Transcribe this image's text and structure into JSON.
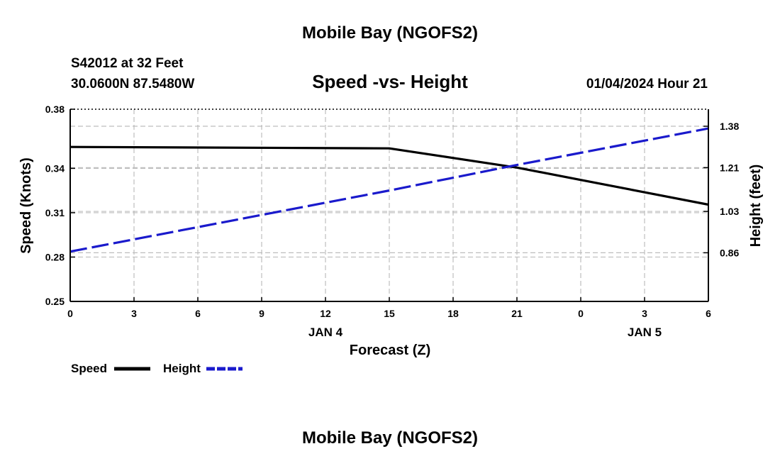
{
  "header": {
    "title": "Mobile Bay (NGOFS2)",
    "station": "S42012 at 32 Feet",
    "coords": "30.0600N  87.5480W",
    "date": "01/04/2024 Hour 21",
    "footer_title": "Mobile Bay (NGOFS2)"
  },
  "chart_data": {
    "type": "line",
    "title": "Speed -vs- Height",
    "xlabel": "Forecast (Z)",
    "ylabel": "Speed (Knots)",
    "y2label": "Height (feet)",
    "x": [
      0,
      1,
      2,
      3,
      4,
      5,
      6,
      7,
      8,
      9,
      10,
      11
    ],
    "x_tick_labels": [
      "0",
      "3",
      "6",
      "9",
      "12",
      "15",
      "18",
      "21",
      "0",
      "3",
      "6"
    ],
    "x_range": [
      0,
      10
    ],
    "date_labels": [
      {
        "label": "JAN 4",
        "at": 4
      },
      {
        "label": "JAN 5",
        "at": 9
      }
    ],
    "ylim": [
      0.25,
      0.38
    ],
    "y_ticks": [
      "0.25",
      "0.28",
      "0.31",
      "0.34",
      "0.38"
    ],
    "y2lim": [
      0.66,
      1.45
    ],
    "y2_ticks": [
      "0.86",
      "1.03",
      "1.21",
      "1.38"
    ],
    "grid": true,
    "legend_position": "bottom-left",
    "series": [
      {
        "name": "Speed",
        "axis": "left",
        "color": "#000000",
        "style": "solid",
        "points": [
          [
            0,
            0.3545
          ],
          [
            5,
            0.3535
          ],
          [
            7,
            0.3405
          ],
          [
            10,
            0.3155
          ]
        ]
      },
      {
        "name": "Height",
        "axis": "right",
        "color": "#1a1acc",
        "style": "dashed",
        "points": [
          [
            0,
            0.865
          ],
          [
            5,
            1.116
          ],
          [
            7,
            1.221
          ],
          [
            10,
            1.371
          ]
        ]
      }
    ]
  }
}
